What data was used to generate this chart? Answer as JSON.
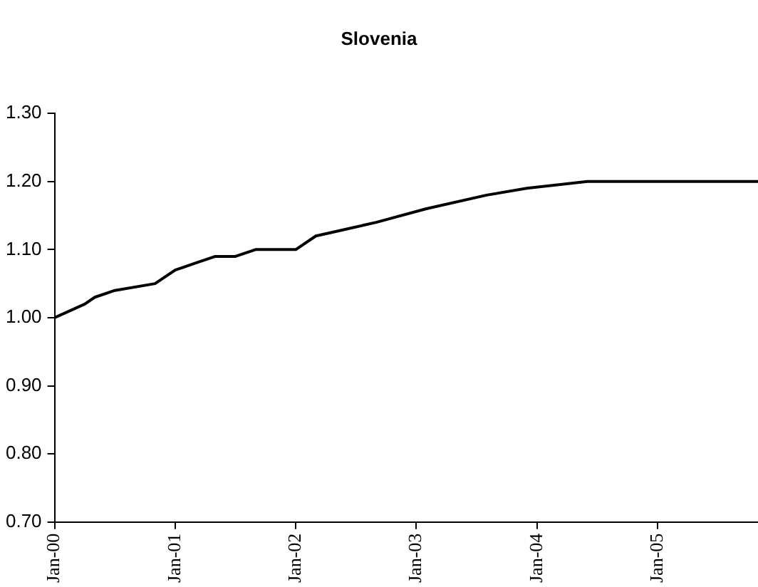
{
  "chart_data": {
    "type": "line",
    "title": "Slovenia",
    "x": [
      "2000-01",
      "2000-04",
      "2000-05",
      "2000-07",
      "2000-11",
      "2001-01",
      "2001-03",
      "2001-05",
      "2001-07",
      "2001-09",
      "2001-11",
      "2001-12",
      "2002-01",
      "2002-03",
      "2002-06",
      "2002-09",
      "2003-02",
      "2003-08",
      "2003-12",
      "2004-06",
      "2004-08",
      "2005-01",
      "2005-06",
      "2005-11"
    ],
    "series": [
      {
        "color": "#000000",
        "values": [
          1.0,
          1.02,
          1.03,
          1.04,
          1.05,
          1.07,
          1.08,
          1.09,
          1.09,
          1.1,
          1.1,
          1.1,
          1.1,
          1.12,
          1.13,
          1.14,
          1.16,
          1.18,
          1.19,
          1.2,
          1.2,
          1.2,
          1.2,
          1.2
        ]
      }
    ],
    "xlim": [
      "2000-01",
      "2005-11"
    ],
    "xticks": [
      {
        "value": "2000-01",
        "label": "Jan-00"
      },
      {
        "value": "2001-01",
        "label": "Jan-01"
      },
      {
        "value": "2002-01",
        "label": "Jan-02"
      },
      {
        "value": "2003-01",
        "label": "Jan-03"
      },
      {
        "value": "2004-01",
        "label": "Jan-04"
      },
      {
        "value": "2005-01",
        "label": "Jan-05"
      }
    ],
    "ylim": [
      0.7,
      1.3
    ],
    "yticks": [
      {
        "value": 0.7,
        "label": "0.70"
      },
      {
        "value": 0.8,
        "label": "0.80"
      },
      {
        "value": 0.9,
        "label": "0.90"
      },
      {
        "value": 1.0,
        "label": "1.00"
      },
      {
        "value": 1.1,
        "label": "1.10"
      },
      {
        "value": 1.2,
        "label": "1.20"
      },
      {
        "value": 1.3,
        "label": "1.30"
      }
    ],
    "grid": false,
    "legend": false,
    "marker": "none",
    "line_style": "solid"
  }
}
